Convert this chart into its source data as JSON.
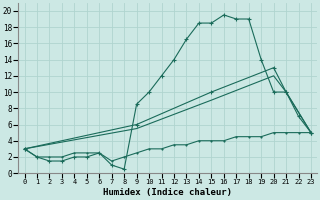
{
  "bg_color": "#cce8e4",
  "grid_color": "#b0d4cf",
  "line_color": "#1a6b5a",
  "line1_x": [
    0,
    1,
    2,
    3,
    4,
    5,
    6,
    7,
    8,
    9,
    10,
    11,
    12,
    13,
    14,
    15,
    16,
    17,
    18,
    19,
    20,
    21,
    22,
    23
  ],
  "line1_y": [
    3,
    2,
    1.5,
    1.5,
    2,
    2,
    2.5,
    1,
    0.5,
    8.5,
    10,
    12,
    14,
    16.5,
    18.5,
    18.5,
    19.5,
    19,
    19,
    14,
    10,
    10,
    7,
    5
  ],
  "line2_x": [
    0,
    9,
    15,
    20,
    21,
    23
  ],
  "line2_y": [
    3,
    6,
    10,
    13,
    10,
    5
  ],
  "line3_x": [
    0,
    9,
    15,
    20,
    21,
    23
  ],
  "line3_y": [
    3,
    5.5,
    9,
    12,
    10,
    5
  ],
  "line4_x": [
    0,
    1,
    2,
    3,
    4,
    5,
    6,
    7,
    8,
    9,
    10,
    11,
    12,
    13,
    14,
    15,
    16,
    17,
    18,
    19,
    20,
    21,
    22,
    23
  ],
  "line4_y": [
    3,
    2,
    2,
    2,
    2.5,
    2.5,
    2.5,
    1.5,
    2,
    2.5,
    3,
    3,
    3.5,
    3.5,
    4,
    4,
    4,
    4.5,
    4.5,
    4.5,
    5,
    5,
    5,
    5
  ],
  "xlim": [
    -0.5,
    23.5
  ],
  "ylim": [
    0,
    21
  ],
  "xlabel": "Humidex (Indice chaleur)",
  "xticks": [
    0,
    1,
    2,
    3,
    4,
    5,
    6,
    7,
    8,
    9,
    10,
    11,
    12,
    13,
    14,
    15,
    16,
    17,
    18,
    19,
    20,
    21,
    22,
    23
  ],
  "yticks": [
    0,
    2,
    4,
    6,
    8,
    10,
    12,
    14,
    16,
    18,
    20
  ]
}
